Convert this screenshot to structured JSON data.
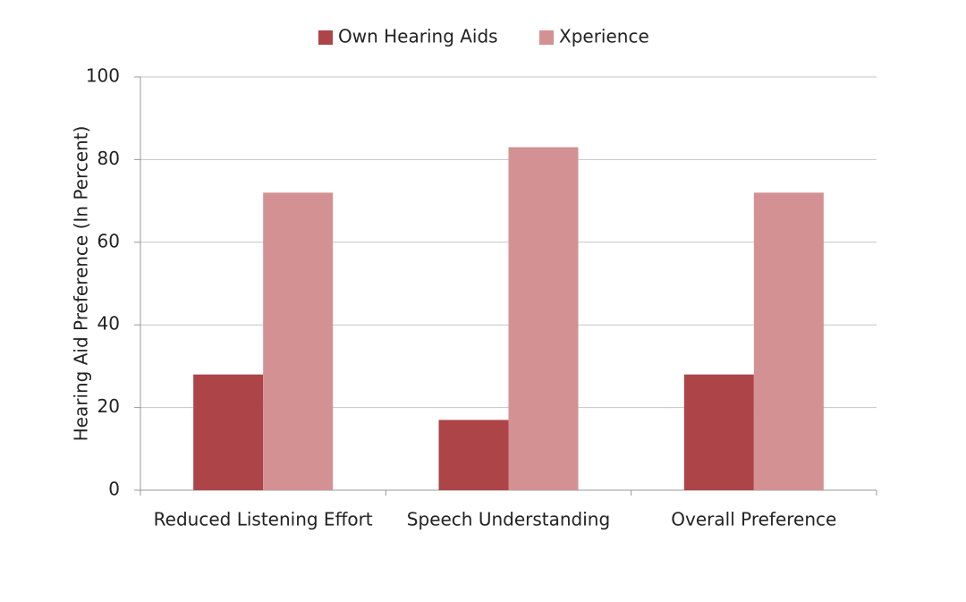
{
  "chart_data": {
    "type": "bar",
    "y_label": "Hearing Aid Preference (In Percent)",
    "categories": [
      "Reduced Listening Effort",
      "Speech Understanding",
      "Overall Preference"
    ],
    "series": [
      {
        "name": "Own Hearing Aids",
        "color": "#ad4448",
        "values": [
          28,
          17,
          28
        ]
      },
      {
        "name": "Xperience",
        "color": "#d49193",
        "values": [
          72,
          83,
          72
        ]
      }
    ],
    "ylim": [
      0,
      100
    ],
    "yticks": [
      0,
      20,
      40,
      60,
      80,
      100
    ],
    "grid": true
  }
}
